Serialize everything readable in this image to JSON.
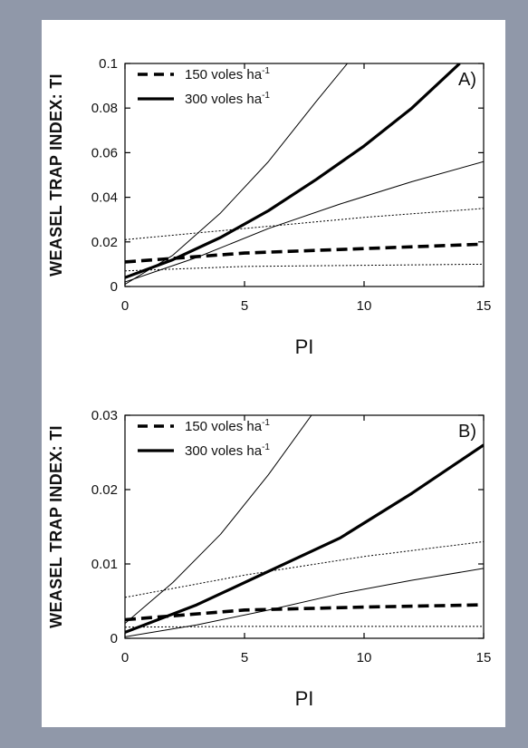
{
  "figure": {
    "background_color": "#8f97a8",
    "panel_color": "#ffffff",
    "line_color": "#000000"
  },
  "chart_data": [
    {
      "type": "line",
      "panel_label": "A)",
      "xlabel": "PI",
      "ylabel": "WEASEL TRAP INDEX: TI",
      "xlim": [
        0,
        15
      ],
      "ylim": [
        0,
        0.1
      ],
      "xticks": [
        "0",
        "5",
        "10",
        "15"
      ],
      "yticks": [
        "0",
        "0.02",
        "0.04",
        "0.06",
        "0.08",
        "0.1"
      ],
      "legend": {
        "position": "top-left",
        "entries": [
          {
            "style": "dashed-bold",
            "label": "150 voles ha",
            "superscript": "-1"
          },
          {
            "style": "solid-bold",
            "label": "300 voles ha",
            "superscript": "-1"
          }
        ]
      },
      "series": [
        {
          "style": "dashed-bold",
          "x": [
            0,
            5,
            10,
            15
          ],
          "y": [
            0.011,
            0.015,
            0.017,
            0.019
          ]
        },
        {
          "style": "dotted-thin",
          "x": [
            0,
            5,
            10,
            15
          ],
          "y": [
            0.021,
            0.026,
            0.031,
            0.035
          ]
        },
        {
          "style": "dotted-thin",
          "x": [
            0,
            5,
            10,
            15
          ],
          "y": [
            0.007,
            0.009,
            0.0095,
            0.01
          ]
        },
        {
          "style": "solid-bold",
          "x": [
            0,
            2,
            4,
            6,
            8,
            10,
            12,
            14
          ],
          "y": [
            0.004,
            0.012,
            0.022,
            0.034,
            0.048,
            0.063,
            0.08,
            0.1
          ]
        },
        {
          "style": "solid-thin",
          "x": [
            0,
            2,
            4,
            6,
            8,
            9.3
          ],
          "y": [
            0.001,
            0.014,
            0.033,
            0.056,
            0.083,
            0.1
          ]
        },
        {
          "style": "solid-thin",
          "x": [
            0,
            3,
            6,
            9,
            12,
            15
          ],
          "y": [
            0.002,
            0.013,
            0.026,
            0.037,
            0.047,
            0.056
          ]
        }
      ]
    },
    {
      "type": "line",
      "panel_label": "B)",
      "xlabel": "PI",
      "ylabel": "WEASEL TRAP INDEX: TI",
      "xlim": [
        0,
        15
      ],
      "ylim": [
        0,
        0.03
      ],
      "xticks": [
        "0",
        "5",
        "10",
        "15"
      ],
      "yticks": [
        "0",
        "0.01",
        "0.02",
        "0.03"
      ],
      "legend": {
        "position": "top-left",
        "entries": [
          {
            "style": "dashed-bold",
            "label": "150 voles ha",
            "superscript": "-1"
          },
          {
            "style": "solid-bold",
            "label": "300 voles ha",
            "superscript": "-1"
          }
        ]
      },
      "series": [
        {
          "style": "dashed-bold",
          "x": [
            0,
            5,
            10,
            15
          ],
          "y": [
            0.0025,
            0.0038,
            0.0042,
            0.0045
          ]
        },
        {
          "style": "dotted-thin",
          "x": [
            0,
            5,
            10,
            15
          ],
          "y": [
            0.0055,
            0.0085,
            0.011,
            0.013
          ]
        },
        {
          "style": "dotted-thin",
          "x": [
            0,
            5,
            10,
            15
          ],
          "y": [
            0.0015,
            0.0016,
            0.0016,
            0.0016
          ]
        },
        {
          "style": "solid-bold",
          "x": [
            0,
            3,
            6,
            9,
            12,
            15
          ],
          "y": [
            0.0008,
            0.0045,
            0.009,
            0.0135,
            0.0195,
            0.026
          ]
        },
        {
          "style": "solid-thin",
          "x": [
            0,
            2,
            4,
            6,
            7.8
          ],
          "y": [
            0.002,
            0.0075,
            0.014,
            0.022,
            0.03
          ]
        },
        {
          "style": "solid-thin",
          "x": [
            0,
            3,
            6,
            9,
            12,
            15
          ],
          "y": [
            0.0002,
            0.0018,
            0.0038,
            0.006,
            0.0078,
            0.0094
          ]
        }
      ]
    }
  ]
}
